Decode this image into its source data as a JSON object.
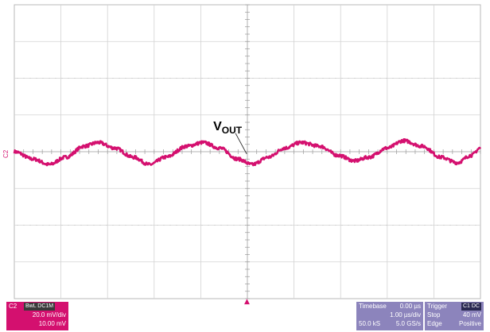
{
  "chart_data": {
    "type": "line",
    "title": "",
    "xlabel": "",
    "ylabel": "",
    "grid": true,
    "grid_divisions": {
      "x": 10,
      "y": 8
    },
    "xlim": [
      -5,
      5
    ],
    "ylim": [
      -80,
      80
    ],
    "x_unit": "µs",
    "y_unit": "mV",
    "trace_color": "#d4106f",
    "channel_marker": "C2",
    "annotation": {
      "text": "V",
      "subscript": "OUT",
      "x": -0.05,
      "y": 4
    },
    "trigger_marker": "▲",
    "series": [
      {
        "values": [
          [
            -5.0,
            0
          ],
          [
            -4.6,
            -4
          ],
          [
            -4.25,
            -7
          ],
          [
            -3.9,
            -3
          ],
          [
            -3.5,
            3
          ],
          [
            -3.2,
            5
          ],
          [
            -2.85,
            2
          ],
          [
            -2.45,
            -3
          ],
          [
            -2.1,
            -7
          ],
          [
            -1.75,
            -3
          ],
          [
            -1.3,
            3
          ],
          [
            -0.95,
            5
          ],
          [
            -0.6,
            2
          ],
          [
            -0.2,
            -4
          ],
          [
            0.1,
            -7
          ],
          [
            0.45,
            -3
          ],
          [
            0.8,
            2
          ],
          [
            1.15,
            5
          ],
          [
            1.55,
            3
          ],
          [
            1.95,
            -2
          ],
          [
            2.3,
            -5
          ],
          [
            2.6,
            -3
          ],
          [
            3.0,
            2
          ],
          [
            3.35,
            6
          ],
          [
            3.75,
            3
          ],
          [
            4.15,
            -3
          ],
          [
            4.5,
            -6
          ],
          [
            4.8,
            -2
          ],
          [
            5.0,
            2
          ]
        ]
      }
    ]
  },
  "channel_panel": {
    "label": "C2",
    "tag": "BwL DC1M",
    "scale": "20.0 mV/div",
    "offset": "10.00 mV"
  },
  "timebase_panel": {
    "label": "Timebase",
    "delay": "0.00 µs",
    "scale": "1.00 µs/div",
    "samples": "50.0 kS",
    "rate": "5.0 GS/s"
  },
  "trigger_panel": {
    "label": "Trigger",
    "tag": "C1 DC",
    "mode": "Stop",
    "level": "40 mV",
    "type": "Edge",
    "slope": "Positive"
  }
}
